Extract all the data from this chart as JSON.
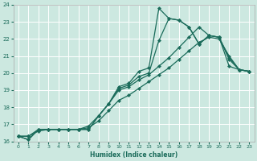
{
  "xlabel": "Humidex (Indice chaleur)",
  "xlim": [
    -0.5,
    23.5
  ],
  "ylim": [
    16,
    24
  ],
  "xticks": [
    0,
    1,
    2,
    3,
    4,
    5,
    6,
    7,
    8,
    9,
    10,
    11,
    12,
    13,
    14,
    15,
    16,
    17,
    18,
    19,
    20,
    21,
    22,
    23
  ],
  "yticks": [
    16,
    17,
    18,
    19,
    20,
    21,
    22,
    23,
    24
  ],
  "bg_color": "#cce8e0",
  "line_color": "#1a6b5a",
  "grid_color": "#ffffff",
  "line1_x": [
    0,
    1,
    2,
    3,
    4,
    5,
    6,
    7,
    8,
    9,
    10,
    11,
    12,
    13,
    14,
    15,
    16,
    17,
    18,
    19,
    20,
    21,
    22,
    23
  ],
  "line1_y": [
    16.3,
    16.1,
    16.7,
    16.7,
    16.7,
    16.7,
    16.7,
    16.7,
    17.5,
    18.2,
    19.2,
    19.4,
    20.1,
    20.3,
    23.8,
    23.2,
    23.1,
    22.7,
    21.7,
    22.2,
    22.1,
    20.9,
    20.2,
    20.1
  ],
  "line2_x": [
    0,
    1,
    2,
    3,
    4,
    5,
    6,
    7,
    8,
    9,
    10,
    11,
    12,
    13,
    14,
    15,
    16,
    17,
    18,
    19,
    20,
    21,
    22,
    23
  ],
  "line2_y": [
    16.3,
    16.1,
    16.7,
    16.7,
    16.7,
    16.7,
    16.7,
    16.7,
    17.5,
    18.2,
    19.1,
    19.3,
    19.8,
    20.0,
    21.9,
    23.2,
    23.1,
    22.7,
    21.7,
    22.2,
    22.1,
    20.4,
    20.2,
    20.1
  ],
  "line3_x": [
    0,
    1,
    2,
    3,
    4,
    5,
    6,
    7,
    8,
    9,
    10,
    11,
    12,
    13,
    14,
    15,
    16,
    17,
    18,
    19,
    20,
    21,
    22,
    23
  ],
  "line3_y": [
    16.3,
    16.3,
    16.7,
    16.7,
    16.7,
    16.7,
    16.7,
    16.9,
    17.5,
    18.2,
    19.0,
    19.2,
    19.6,
    19.9,
    20.4,
    20.9,
    21.5,
    22.1,
    22.7,
    22.2,
    22.1,
    20.8,
    20.2,
    20.1
  ],
  "line4_x": [
    0,
    1,
    2,
    3,
    4,
    5,
    6,
    7,
    8,
    9,
    10,
    11,
    12,
    13,
    14,
    15,
    16,
    17,
    18,
    19,
    20,
    21,
    22,
    23
  ],
  "line4_y": [
    16.3,
    16.3,
    16.6,
    16.7,
    16.7,
    16.7,
    16.7,
    16.8,
    17.2,
    17.8,
    18.4,
    18.7,
    19.1,
    19.5,
    19.9,
    20.3,
    20.8,
    21.3,
    21.8,
    22.1,
    22.0,
    21.0,
    20.2,
    20.1
  ]
}
